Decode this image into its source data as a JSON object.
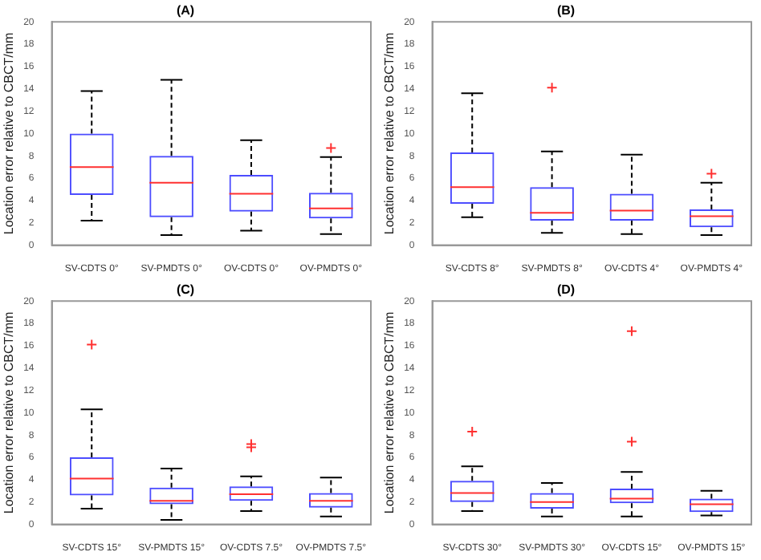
{
  "chart_data": [
    {
      "type": "box",
      "title": "(A)",
      "ylabel": "Location error relative to CBCT/mm",
      "categories": [
        "SV-CDTS 0°",
        "SV-PMDTS 0°",
        "OV-CDTS 0°",
        "OV-PMDTS 0°"
      ],
      "ylim": [
        0,
        20
      ],
      "yticks": [
        0,
        2,
        4,
        6,
        8,
        10,
        12,
        14,
        16,
        18,
        20
      ],
      "grid": false,
      "legend": false,
      "series": [
        {
          "color": "#4d4dff",
          "boxes": [
            {
              "low": 2.2,
              "q1": 4.5,
              "median": 7.0,
              "q3": 10.0,
              "high": 13.8
            },
            {
              "low": 0.9,
              "q1": 2.5,
              "median": 5.6,
              "q3": 8.0,
              "high": 14.8
            },
            {
              "low": 1.3,
              "q1": 3.0,
              "median": 4.6,
              "q3": 6.3,
              "high": 9.4
            },
            {
              "low": 1.0,
              "q1": 2.4,
              "median": 3.3,
              "q3": 4.7,
              "high": 7.9,
              "outliers": [
                8.7
              ]
            }
          ]
        }
      ]
    },
    {
      "type": "box",
      "title": "(B)",
      "ylabel": "Location error relative to CBCT/mm",
      "categories": [
        "SV-CDTS 8°",
        "SV-PMDTS 8°",
        "OV-CDTS 4°",
        "OV-PMDTS 4°"
      ],
      "ylim": [
        0,
        20
      ],
      "yticks": [
        0,
        2,
        4,
        6,
        8,
        10,
        12,
        14,
        16,
        18,
        20
      ],
      "grid": false,
      "legend": false,
      "series": [
        {
          "color": "#4d4dff",
          "boxes": [
            {
              "low": 2.5,
              "q1": 3.7,
              "median": 5.2,
              "q3": 8.3,
              "high": 13.6
            },
            {
              "low": 1.1,
              "q1": 2.2,
              "median": 2.9,
              "q3": 5.2,
              "high": 8.4,
              "outliers": [
                14.1
              ]
            },
            {
              "low": 1.0,
              "q1": 2.2,
              "median": 3.1,
              "q3": 4.6,
              "high": 8.1
            },
            {
              "low": 0.9,
              "q1": 1.6,
              "median": 2.6,
              "q3": 3.2,
              "high": 5.6,
              "outliers": [
                6.4
              ]
            }
          ]
        }
      ]
    },
    {
      "type": "box",
      "title": "(C)",
      "ylabel": "Location error relative to CBCT/mm",
      "categories": [
        "SV-CDTS 15°",
        "SV-PMDTS 15°",
        "OV-CDTS 7.5°",
        "OV-PMDTS 7.5°"
      ],
      "ylim": [
        0,
        20
      ],
      "yticks": [
        0,
        2,
        4,
        6,
        8,
        10,
        12,
        14,
        16,
        18,
        20
      ],
      "grid": false,
      "legend": false,
      "series": [
        {
          "color": "#4d4dff",
          "boxes": [
            {
              "low": 1.4,
              "q1": 2.6,
              "median": 4.1,
              "q3": 6.0,
              "high": 10.3,
              "outliers": [
                16.1
              ]
            },
            {
              "low": 0.4,
              "q1": 1.8,
              "median": 2.1,
              "q3": 3.3,
              "high": 5.0
            },
            {
              "low": 1.2,
              "q1": 2.1,
              "median": 2.7,
              "q3": 3.4,
              "high": 4.3,
              "outliers": [
                6.9,
                7.2
              ]
            },
            {
              "low": 0.7,
              "q1": 1.5,
              "median": 2.1,
              "q3": 2.8,
              "high": 4.2
            }
          ]
        }
      ]
    },
    {
      "type": "box",
      "title": "(D)",
      "ylabel": "Location error relative to CBCT/mm",
      "categories": [
        "SV-CDTS 30°",
        "SV-PMDTS 30°",
        "OV-CDTS 15°",
        "OV-PMDTS 15°"
      ],
      "ylim": [
        0,
        20
      ],
      "yticks": [
        0,
        2,
        4,
        6,
        8,
        10,
        12,
        14,
        16,
        18,
        20
      ],
      "grid": false,
      "legend": false,
      "series": [
        {
          "color": "#4d4dff",
          "boxes": [
            {
              "low": 1.2,
              "q1": 2.0,
              "median": 2.8,
              "q3": 3.9,
              "high": 5.2,
              "outliers": [
                8.3
              ]
            },
            {
              "low": 0.7,
              "q1": 1.4,
              "median": 2.0,
              "q3": 2.8,
              "high": 3.7
            },
            {
              "low": 0.7,
              "q1": 1.9,
              "median": 2.3,
              "q3": 3.2,
              "high": 4.7,
              "outliers": [
                7.4,
                17.3
              ]
            },
            {
              "low": 0.8,
              "q1": 1.1,
              "median": 1.8,
              "q3": 2.3,
              "high": 3.0
            }
          ]
        }
      ]
    }
  ]
}
